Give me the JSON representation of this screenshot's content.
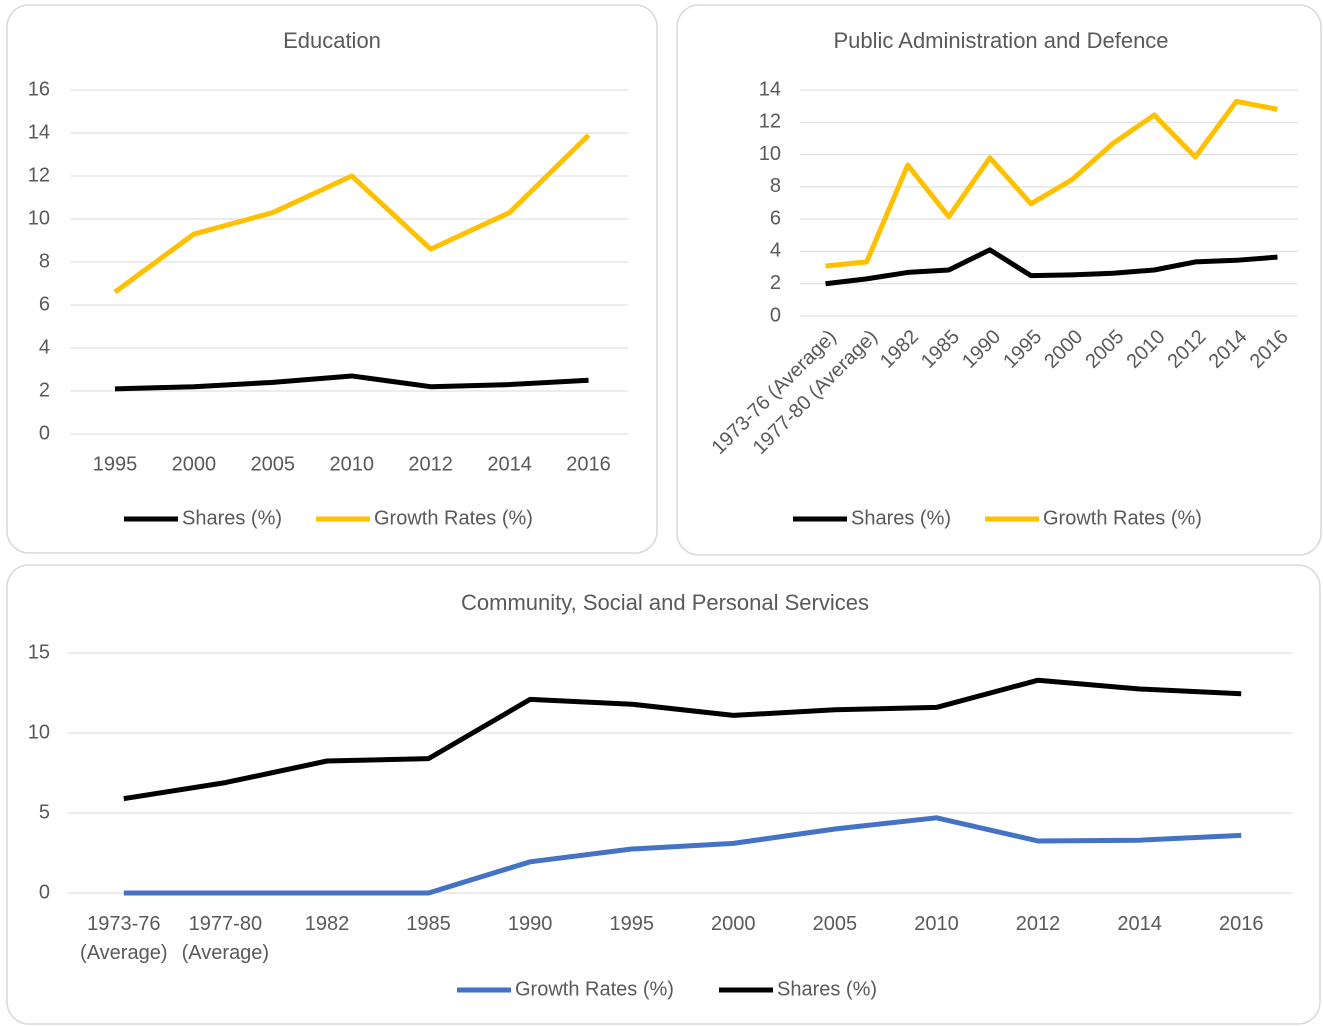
{
  "chart_data": [
    {
      "type": "line",
      "title": "Education",
      "categories": [
        "1995",
        "2000",
        "2005",
        "2010",
        "2012",
        "2014",
        "2016"
      ],
      "series": [
        {
          "name": "Shares (%)",
          "color": "#000000",
          "values": [
            2.1,
            2.2,
            2.4,
            2.7,
            2.2,
            2.3,
            2.5
          ]
        },
        {
          "name": "Growth Rates (%)",
          "color": "#ffc000",
          "values": [
            6.6,
            9.3,
            10.3,
            12.0,
            8.6,
            10.3,
            13.9
          ]
        }
      ],
      "ylim": [
        0,
        16
      ],
      "yticks": [
        0,
        2,
        4,
        6,
        8,
        10,
        12,
        14,
        16
      ],
      "grid": true,
      "legend": "bottom"
    },
    {
      "type": "line",
      "title": "Public Administration and Defence",
      "categories": [
        "1973-76 (Average)",
        "1977-80 (Average)",
        "1982",
        "1985",
        "1990",
        "1995",
        "2000",
        "2005",
        "2010",
        "2012",
        "2014",
        "2016"
      ],
      "series": [
        {
          "name": "Shares (%)",
          "color": "#000000",
          "values": [
            2.0,
            2.3,
            2.7,
            2.85,
            4.1,
            2.5,
            2.55,
            2.65,
            2.85,
            3.35,
            3.45,
            3.65
          ]
        },
        {
          "name": "Growth Rates (%)",
          "color": "#ffc000",
          "values": [
            3.1,
            3.35,
            9.35,
            6.15,
            9.8,
            6.95,
            8.45,
            10.7,
            12.45,
            9.85,
            13.3,
            12.8
          ]
        }
      ],
      "ylim": [
        0,
        14
      ],
      "yticks": [
        0,
        2,
        4,
        6,
        8,
        10,
        12,
        14
      ],
      "grid": true,
      "legend": "bottom"
    },
    {
      "type": "line",
      "title": "Community, Social and Personal Services",
      "categories": [
        "1973-76 (Average)",
        "1977-80 (Average)",
        "1982",
        "1985",
        "1990",
        "1995",
        "2000",
        "2005",
        "2010",
        "2012",
        "2014",
        "2016"
      ],
      "series": [
        {
          "name": "Growth Rates (%)",
          "color": "#4472c4",
          "values": [
            0,
            0,
            0,
            0,
            1.95,
            2.75,
            3.1,
            4.0,
            4.7,
            3.25,
            3.3,
            3.6
          ]
        },
        {
          "name": "Shares (%)",
          "color": "#000000",
          "values": [
            5.9,
            6.9,
            8.25,
            8.4,
            12.1,
            11.8,
            11.1,
            11.45,
            11.6,
            13.3,
            12.75,
            12.45
          ]
        }
      ],
      "ylim": [
        0,
        15
      ],
      "yticks": [
        0,
        5,
        10,
        15
      ],
      "grid": true,
      "legend": "bottom"
    }
  ]
}
